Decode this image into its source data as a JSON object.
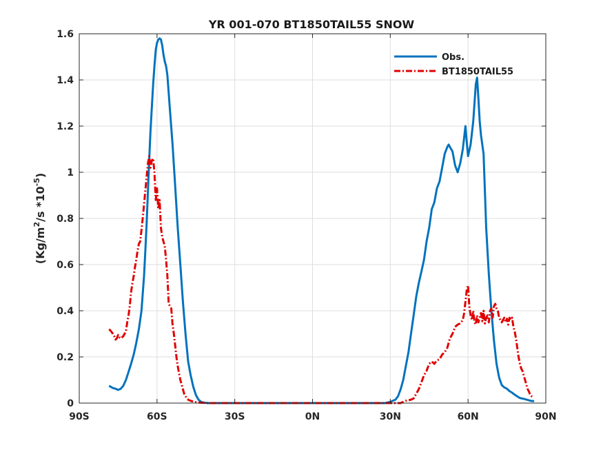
{
  "chart_data": {
    "type": "line",
    "title": "YR 001-070 BT1850TAIL55 SNOW",
    "ylabel_parts": {
      "pre": "(Kg/m",
      "sup1": "2",
      "mid": "/s *10",
      "sup2": "-5",
      "post": ")"
    },
    "xlim": [
      -90,
      90
    ],
    "ylim": [
      0,
      1.6
    ],
    "xticks": [
      -90,
      -60,
      -30,
      0,
      30,
      60,
      90
    ],
    "xtick_labels": [
      "90S",
      "60S",
      "30S",
      "0N",
      "30N",
      "60N",
      "90N"
    ],
    "yticks": [
      0,
      0.2,
      0.4,
      0.6,
      0.8,
      1.0,
      1.2,
      1.4,
      1.6
    ],
    "ytick_labels": [
      "0",
      "0.2",
      "0.4",
      "0.6",
      "0.8",
      "1",
      "1.2",
      "1.4",
      "1.6"
    ],
    "grid": true,
    "legend_position": "top-right",
    "series": [
      {
        "name": "Obs.",
        "color": "#0072bd",
        "style": "solid",
        "x": [
          -78.5,
          -77,
          -76,
          -75,
          -74,
          -73,
          -72,
          -71,
          -70,
          -69,
          -68,
          -67,
          -66,
          -65,
          -64.5,
          -64,
          -63.5,
          -63,
          -62.5,
          -62,
          -61.5,
          -61,
          -60.5,
          -60,
          -59.5,
          -59,
          -58.5,
          -58,
          -57.5,
          -57,
          -56.5,
          -56,
          -55,
          -54,
          -53,
          -52,
          -51,
          -50,
          -49,
          -48,
          -47,
          -46,
          -45,
          -44,
          -43,
          -42,
          -41,
          -40,
          -35,
          -30,
          -20,
          -10,
          0,
          10,
          20,
          28,
          30,
          32,
          33,
          34,
          35,
          36,
          37,
          38,
          39,
          40,
          41,
          42,
          43,
          44,
          45,
          46,
          47,
          48,
          49,
          50,
          51,
          52,
          52.5,
          53,
          54,
          55,
          56,
          57,
          58,
          59,
          59.5,
          60,
          61,
          62,
          63,
          63.5,
          64,
          64.5,
          65,
          66,
          67,
          68,
          69,
          70,
          71,
          72,
          73,
          74,
          75,
          76,
          77,
          78,
          79,
          80,
          82,
          84,
          85.5
        ],
        "y": [
          0.075,
          0.065,
          0.062,
          0.057,
          0.062,
          0.075,
          0.1,
          0.135,
          0.17,
          0.21,
          0.26,
          0.32,
          0.4,
          0.55,
          0.66,
          0.78,
          0.92,
          1.06,
          1.18,
          1.28,
          1.38,
          1.46,
          1.53,
          1.56,
          1.575,
          1.58,
          1.575,
          1.55,
          1.51,
          1.48,
          1.46,
          1.42,
          1.27,
          1.12,
          0.94,
          0.76,
          0.6,
          0.44,
          0.3,
          0.18,
          0.12,
          0.07,
          0.035,
          0.015,
          0.005,
          0.002,
          0.001,
          0,
          0,
          0,
          0,
          0,
          0,
          0,
          0,
          0.0,
          0.005,
          0.015,
          0.03,
          0.06,
          0.1,
          0.16,
          0.22,
          0.3,
          0.38,
          0.46,
          0.52,
          0.57,
          0.62,
          0.7,
          0.76,
          0.84,
          0.87,
          0.93,
          0.96,
          1.02,
          1.08,
          1.11,
          1.12,
          1.11,
          1.09,
          1.03,
          1.0,
          1.04,
          1.1,
          1.2,
          1.13,
          1.07,
          1.12,
          1.22,
          1.38,
          1.41,
          1.32,
          1.22,
          1.16,
          1.08,
          0.76,
          0.56,
          0.4,
          0.27,
          0.17,
          0.11,
          0.078,
          0.068,
          0.062,
          0.052,
          0.045,
          0.036,
          0.029,
          0.022,
          0.017,
          0.01,
          0.008
        ]
      },
      {
        "name": "BT1850TAIL55",
        "color": "#e00000",
        "style": "dashdot",
        "x": [
          -78.5,
          -78,
          -77,
          -76.5,
          -76,
          -75.5,
          -75,
          -74.5,
          -74,
          -73,
          -72,
          -71.5,
          -71,
          -70.5,
          -70,
          -69.5,
          -69,
          -68.5,
          -68,
          -67.5,
          -67,
          -66.5,
          -66,
          -65.5,
          -65,
          -64.5,
          -64,
          -63.5,
          -63,
          -62.5,
          -62,
          -61.5,
          -61,
          -60.5,
          -60,
          -59.5,
          -59,
          -58.5,
          -58,
          -57.5,
          -57,
          -56.5,
          -56,
          -55.5,
          -55,
          -54.5,
          -54,
          -53.5,
          -53,
          -52.5,
          -52,
          -51.5,
          -51,
          -50.5,
          -50,
          -49.5,
          -49,
          -48.5,
          -48,
          -47.5,
          -47,
          -46.5,
          -46,
          -45,
          -44,
          -40,
          -30,
          -20,
          -10,
          0,
          10,
          20,
          28,
          30,
          32,
          34,
          35,
          36,
          37,
          38,
          39,
          40,
          41,
          42,
          43,
          44,
          45,
          46,
          47,
          48,
          49,
          50,
          51,
          52,
          53,
          54,
          55,
          56,
          57,
          58,
          58.5,
          59,
          59.5,
          60,
          60.5,
          61,
          61.5,
          62,
          62.5,
          63,
          63.5,
          64,
          64.5,
          65,
          65.5,
          66,
          66.5,
          67,
          67.5,
          68,
          68.5,
          69,
          69.5,
          70,
          70.5,
          71,
          71.5,
          72,
          72.5,
          73,
          73.5,
          74,
          74.5,
          75,
          75.5,
          76,
          76.5,
          77,
          77.5,
          78,
          78.5,
          79,
          79.5,
          80,
          80.5,
          81,
          81.5,
          82,
          82.5,
          83,
          83.5,
          84,
          84.5,
          85,
          85.5
        ],
        "y": [
          0.32,
          0.315,
          0.3,
          0.29,
          0.275,
          0.28,
          0.295,
          0.285,
          0.28,
          0.29,
          0.31,
          0.35,
          0.38,
          0.42,
          0.48,
          0.52,
          0.55,
          0.59,
          0.62,
          0.66,
          0.69,
          0.7,
          0.75,
          0.8,
          0.86,
          0.92,
          0.98,
          1.04,
          1.07,
          1.02,
          1.05,
          1.06,
          1.0,
          0.88,
          0.93,
          0.84,
          0.88,
          0.76,
          0.72,
          0.7,
          0.68,
          0.62,
          0.55,
          0.43,
          0.42,
          0.41,
          0.34,
          0.3,
          0.25,
          0.2,
          0.16,
          0.13,
          0.1,
          0.08,
          0.06,
          0.04,
          0.03,
          0.02,
          0.015,
          0.012,
          0.01,
          0.008,
          0.006,
          0.004,
          0.002,
          0,
          0,
          0,
          0,
          0,
          0,
          0,
          0,
          0,
          0.0,
          0.0,
          0.005,
          0.01,
          0.012,
          0.015,
          0.02,
          0.04,
          0.06,
          0.09,
          0.12,
          0.14,
          0.17,
          0.18,
          0.17,
          0.185,
          0.19,
          0.21,
          0.22,
          0.24,
          0.28,
          0.3,
          0.33,
          0.34,
          0.345,
          0.36,
          0.39,
          0.44,
          0.49,
          0.51,
          0.42,
          0.38,
          0.36,
          0.4,
          0.35,
          0.34,
          0.38,
          0.35,
          0.37,
          0.39,
          0.355,
          0.4,
          0.345,
          0.37,
          0.38,
          0.35,
          0.4,
          0.41,
          0.37,
          0.42,
          0.43,
          0.41,
          0.4,
          0.37,
          0.36,
          0.35,
          0.36,
          0.37,
          0.35,
          0.365,
          0.34,
          0.37,
          0.36,
          0.37,
          0.33,
          0.31,
          0.28,
          0.24,
          0.2,
          0.17,
          0.15,
          0.14,
          0.12,
          0.1,
          0.08,
          0.06,
          0.05,
          0.035,
          0.03,
          0.028,
          0.03
        ]
      }
    ]
  }
}
